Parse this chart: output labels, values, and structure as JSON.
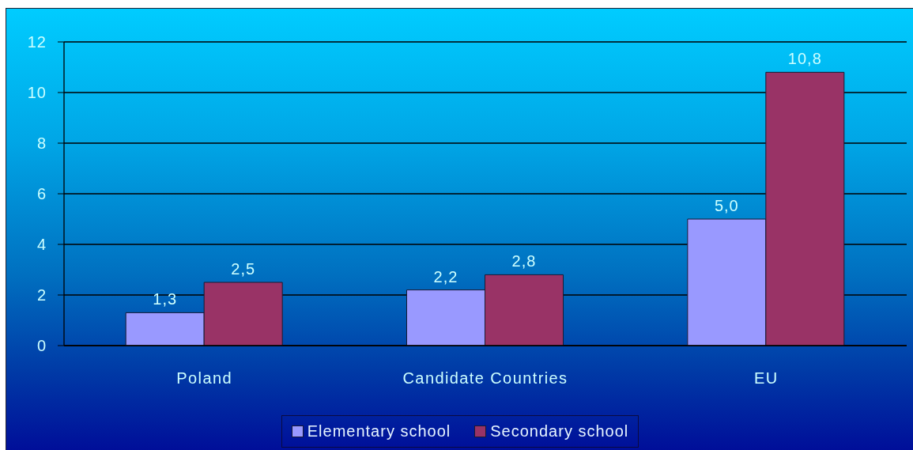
{
  "chart_data": {
    "type": "bar",
    "categories": [
      "Poland",
      "Candidate Countries",
      "EU"
    ],
    "series": [
      {
        "name": "Elementary school",
        "color": "#9999ff",
        "values": [
          1.3,
          2.2,
          5.0
        ],
        "value_labels": [
          "1,3",
          "2,2",
          "5,0"
        ]
      },
      {
        "name": "Secondary school",
        "color": "#993366",
        "values": [
          2.5,
          2.8,
          10.8
        ],
        "value_labels": [
          "2,5",
          "2,8",
          "10,8"
        ]
      }
    ],
    "ylim": [
      0,
      12
    ],
    "yticks": [
      0,
      2,
      4,
      6,
      8,
      10,
      12
    ],
    "grid": "y",
    "legend": "bottom"
  }
}
